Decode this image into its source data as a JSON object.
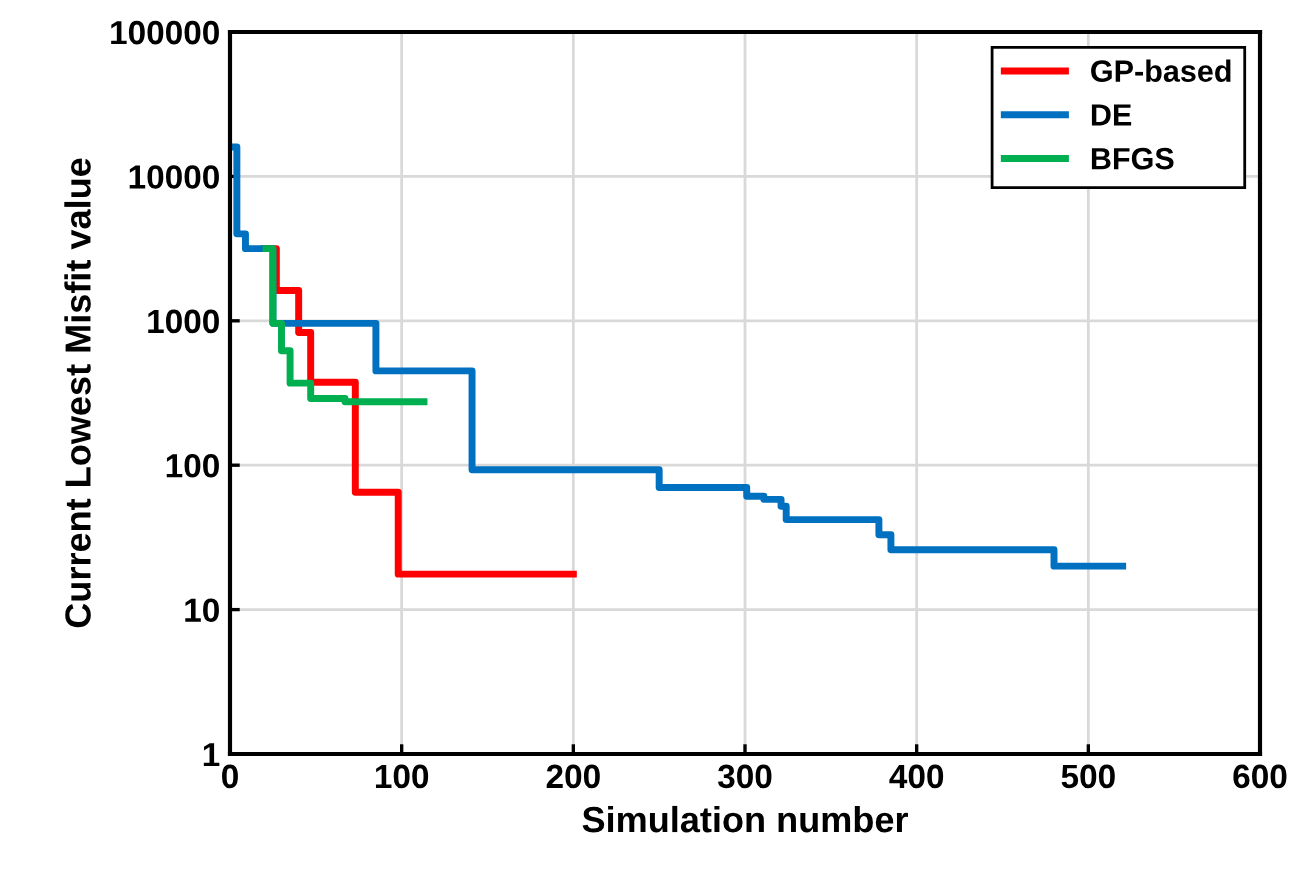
{
  "chart_data": {
    "type": "step",
    "xlabel": "Simulation number",
    "ylabel": "Current Lowest Misfit value",
    "log": "y",
    "grid": true,
    "legend": "top right",
    "xlim": [
      0,
      600
    ],
    "xticks": [
      0,
      100,
      200,
      300,
      400,
      500,
      600
    ],
    "ylim": [
      1,
      100000
    ],
    "yticks": [
      1,
      10,
      100,
      1000,
      10000,
      100000
    ],
    "series": [
      {
        "name": "GP-based",
        "color": "#ff0000",
        "x": [
          20,
          27,
          40,
          47,
          73,
          98,
          200
        ],
        "values": [
          3160,
          1620,
          830,
          375,
          65,
          17.6,
          17.6
        ]
      },
      {
        "name": "DE",
        "color": "#0070c0",
        "x": [
          2,
          4,
          9,
          25,
          85,
          141,
          250,
          301,
          311,
          321,
          324,
          378,
          385,
          480,
          520
        ],
        "values": [
          16000,
          4000,
          3160,
          960,
          450,
          93,
          70,
          61,
          58,
          52,
          42,
          33,
          26,
          20,
          20
        ]
      },
      {
        "name": "BFGS",
        "color": "#00b050",
        "x": [
          21,
          25,
          30,
          35,
          47,
          67,
          113
        ],
        "values": [
          3160,
          960,
          620,
          370,
          290,
          275,
          275
        ]
      }
    ]
  }
}
